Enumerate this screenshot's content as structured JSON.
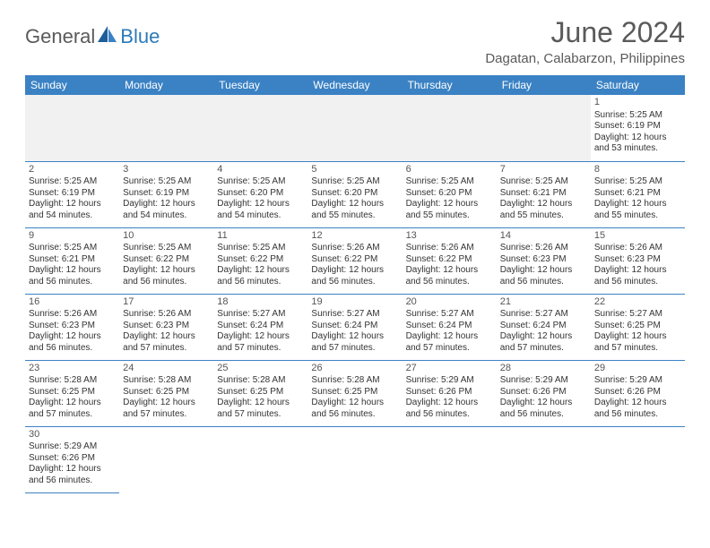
{
  "logo": {
    "part1": "General",
    "part2": "Blue"
  },
  "title": "June 2024",
  "location": "Dagatan, Calabarzon, Philippines",
  "colors": {
    "header_bg": "#3b82c4",
    "header_text": "#ffffff",
    "rule": "#3b82c4",
    "blank_bg": "#f1f1f1",
    "body_text": "#333333",
    "title_text": "#5a5a5a",
    "logo_gray": "#5a5a5a",
    "logo_blue": "#2d7ab8"
  },
  "daynames": [
    "Sunday",
    "Monday",
    "Tuesday",
    "Wednesday",
    "Thursday",
    "Friday",
    "Saturday"
  ],
  "weeks": [
    [
      null,
      null,
      null,
      null,
      null,
      null,
      {
        "n": "1",
        "sr": "5:25 AM",
        "ss": "6:19 PM",
        "dl": "12 hours and 53 minutes."
      }
    ],
    [
      {
        "n": "2",
        "sr": "5:25 AM",
        "ss": "6:19 PM",
        "dl": "12 hours and 54 minutes."
      },
      {
        "n": "3",
        "sr": "5:25 AM",
        "ss": "6:19 PM",
        "dl": "12 hours and 54 minutes."
      },
      {
        "n": "4",
        "sr": "5:25 AM",
        "ss": "6:20 PM",
        "dl": "12 hours and 54 minutes."
      },
      {
        "n": "5",
        "sr": "5:25 AM",
        "ss": "6:20 PM",
        "dl": "12 hours and 55 minutes."
      },
      {
        "n": "6",
        "sr": "5:25 AM",
        "ss": "6:20 PM",
        "dl": "12 hours and 55 minutes."
      },
      {
        "n": "7",
        "sr": "5:25 AM",
        "ss": "6:21 PM",
        "dl": "12 hours and 55 minutes."
      },
      {
        "n": "8",
        "sr": "5:25 AM",
        "ss": "6:21 PM",
        "dl": "12 hours and 55 minutes."
      }
    ],
    [
      {
        "n": "9",
        "sr": "5:25 AM",
        "ss": "6:21 PM",
        "dl": "12 hours and 56 minutes."
      },
      {
        "n": "10",
        "sr": "5:25 AM",
        "ss": "6:22 PM",
        "dl": "12 hours and 56 minutes."
      },
      {
        "n": "11",
        "sr": "5:25 AM",
        "ss": "6:22 PM",
        "dl": "12 hours and 56 minutes."
      },
      {
        "n": "12",
        "sr": "5:26 AM",
        "ss": "6:22 PM",
        "dl": "12 hours and 56 minutes."
      },
      {
        "n": "13",
        "sr": "5:26 AM",
        "ss": "6:22 PM",
        "dl": "12 hours and 56 minutes."
      },
      {
        "n": "14",
        "sr": "5:26 AM",
        "ss": "6:23 PM",
        "dl": "12 hours and 56 minutes."
      },
      {
        "n": "15",
        "sr": "5:26 AM",
        "ss": "6:23 PM",
        "dl": "12 hours and 56 minutes."
      }
    ],
    [
      {
        "n": "16",
        "sr": "5:26 AM",
        "ss": "6:23 PM",
        "dl": "12 hours and 56 minutes."
      },
      {
        "n": "17",
        "sr": "5:26 AM",
        "ss": "6:23 PM",
        "dl": "12 hours and 57 minutes."
      },
      {
        "n": "18",
        "sr": "5:27 AM",
        "ss": "6:24 PM",
        "dl": "12 hours and 57 minutes."
      },
      {
        "n": "19",
        "sr": "5:27 AM",
        "ss": "6:24 PM",
        "dl": "12 hours and 57 minutes."
      },
      {
        "n": "20",
        "sr": "5:27 AM",
        "ss": "6:24 PM",
        "dl": "12 hours and 57 minutes."
      },
      {
        "n": "21",
        "sr": "5:27 AM",
        "ss": "6:24 PM",
        "dl": "12 hours and 57 minutes."
      },
      {
        "n": "22",
        "sr": "5:27 AM",
        "ss": "6:25 PM",
        "dl": "12 hours and 57 minutes."
      }
    ],
    [
      {
        "n": "23",
        "sr": "5:28 AM",
        "ss": "6:25 PM",
        "dl": "12 hours and 57 minutes."
      },
      {
        "n": "24",
        "sr": "5:28 AM",
        "ss": "6:25 PM",
        "dl": "12 hours and 57 minutes."
      },
      {
        "n": "25",
        "sr": "5:28 AM",
        "ss": "6:25 PM",
        "dl": "12 hours and 57 minutes."
      },
      {
        "n": "26",
        "sr": "5:28 AM",
        "ss": "6:25 PM",
        "dl": "12 hours and 56 minutes."
      },
      {
        "n": "27",
        "sr": "5:29 AM",
        "ss": "6:26 PM",
        "dl": "12 hours and 56 minutes."
      },
      {
        "n": "28",
        "sr": "5:29 AM",
        "ss": "6:26 PM",
        "dl": "12 hours and 56 minutes."
      },
      {
        "n": "29",
        "sr": "5:29 AM",
        "ss": "6:26 PM",
        "dl": "12 hours and 56 minutes."
      }
    ],
    [
      {
        "n": "30",
        "sr": "5:29 AM",
        "ss": "6:26 PM",
        "dl": "12 hours and 56 minutes."
      },
      null,
      null,
      null,
      null,
      null,
      null
    ]
  ],
  "labels": {
    "sunrise": "Sunrise: ",
    "sunset": "Sunset: ",
    "daylight": "Daylight: "
  }
}
